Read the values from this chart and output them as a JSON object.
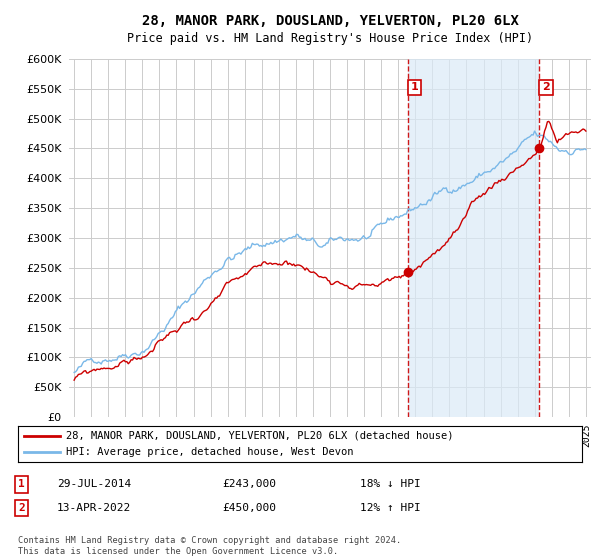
{
  "title": "28, MANOR PARK, DOUSLAND, YELVERTON, PL20 6LX",
  "subtitle": "Price paid vs. HM Land Registry's House Price Index (HPI)",
  "ylim": [
    0,
    600000
  ],
  "yticks": [
    0,
    50000,
    100000,
    150000,
    200000,
    250000,
    300000,
    350000,
    400000,
    450000,
    500000,
    550000,
    600000
  ],
  "hpi_color": "#7ab8e8",
  "price_color": "#cc0000",
  "vline_color": "#cc0000",
  "shade_color": "#daeaf7",
  "background_color": "#ffffff",
  "grid_color": "#cccccc",
  "legend_label_red": "28, MANOR PARK, DOUSLAND, YELVERTON, PL20 6LX (detached house)",
  "legend_label_blue": "HPI: Average price, detached house, West Devon",
  "sale1_label": "1",
  "sale1_date": "29-JUL-2014",
  "sale1_price": "£243,000",
  "sale1_hpi": "18% ↓ HPI",
  "sale1_year": 2014.58,
  "sale1_value": 243000,
  "sale2_label": "2",
  "sale2_date": "13-APR-2022",
  "sale2_price": "£450,000",
  "sale2_hpi": "12% ↑ HPI",
  "sale2_year": 2022.28,
  "sale2_value": 450000,
  "xstart": 1995,
  "xend": 2025,
  "footnote": "Contains HM Land Registry data © Crown copyright and database right 2024.\nThis data is licensed under the Open Government Licence v3.0."
}
